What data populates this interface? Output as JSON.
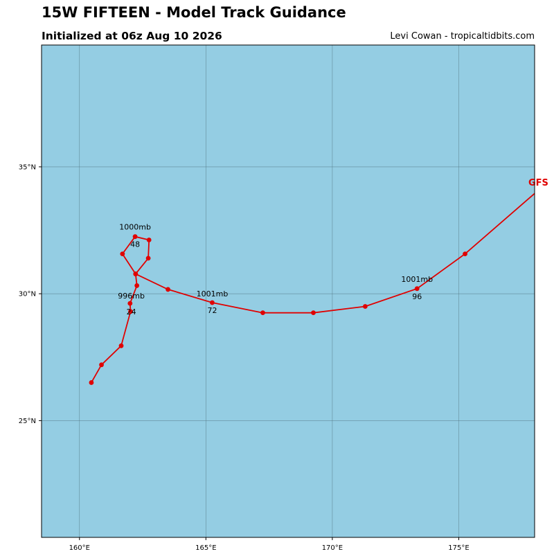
{
  "header": {
    "title": "15W FIFTEEN - Model Track Guidance",
    "subtitle": "Initialized at 06z Aug 10 2026",
    "credit": "Levi Cowan - tropicaltidbits.com"
  },
  "colors": {
    "ocean": "#94cde3",
    "track": "#e00000",
    "grid": "#4d6f7a"
  },
  "map": {
    "lon_range": [
      158.5,
      178
    ],
    "lat_range": [
      20.4,
      39.8
    ],
    "lon_ticks": [
      {
        "value": 160,
        "label": "160°E"
      },
      {
        "value": 165,
        "label": "165°E"
      },
      {
        "value": 170,
        "label": "170°E"
      },
      {
        "value": 175,
        "label": "175°E"
      }
    ],
    "lat_ticks": [
      {
        "value": 25,
        "label": "25°N"
      },
      {
        "value": 30,
        "label": "30°N"
      },
      {
        "value": 35,
        "label": "35°N"
      }
    ]
  },
  "track": {
    "model": "GFS",
    "points": [
      {
        "lon": 160.47,
        "lat": 26.5
      },
      {
        "lon": 160.87,
        "lat": 27.2
      },
      {
        "lon": 161.65,
        "lat": 27.95
      },
      {
        "lon": 162.02,
        "lat": 29.3
      },
      {
        "lon": 162.0,
        "lat": 29.62
      },
      {
        "lon": 162.27,
        "lat": 30.32
      },
      {
        "lon": 162.22,
        "lat": 30.78
      },
      {
        "lon": 161.7,
        "lat": 31.57
      },
      {
        "lon": 162.2,
        "lat": 32.25
      },
      {
        "lon": 162.75,
        "lat": 32.12
      },
      {
        "lon": 162.72,
        "lat": 31.4
      },
      {
        "lon": 162.22,
        "lat": 30.78
      },
      {
        "lon": 163.5,
        "lat": 30.17
      },
      {
        "lon": 165.25,
        "lat": 29.65
      },
      {
        "lon": 167.25,
        "lat": 29.25
      },
      {
        "lon": 169.25,
        "lat": 29.25
      },
      {
        "lon": 171.3,
        "lat": 29.5
      },
      {
        "lon": 173.35,
        "lat": 30.2
      },
      {
        "lon": 175.25,
        "lat": 31.57
      },
      {
        "lon": 178.0,
        "lat": 33.95
      }
    ],
    "annotations": [
      {
        "text": "996mb",
        "lon": 162.05,
        "lat": 29.95,
        "dy": 5
      },
      {
        "text": "24",
        "lon": 162.05,
        "lat": 29.3,
        "dy": 4
      },
      {
        "text": "1000mb",
        "lon": 162.2,
        "lat": 32.25,
        "dy": -10
      },
      {
        "text": "48",
        "lon": 162.2,
        "lat": 32.25,
        "dy": 15
      },
      {
        "text": "1001mb",
        "lon": 165.25,
        "lat": 29.65,
        "dy": -9
      },
      {
        "text": "72",
        "lon": 165.25,
        "lat": 29.65,
        "dy": 15
      },
      {
        "text": "1001mb",
        "lon": 173.35,
        "lat": 30.2,
        "dy": -10
      },
      {
        "text": "96",
        "lon": 173.35,
        "lat": 30.2,
        "dy": 15
      }
    ]
  }
}
